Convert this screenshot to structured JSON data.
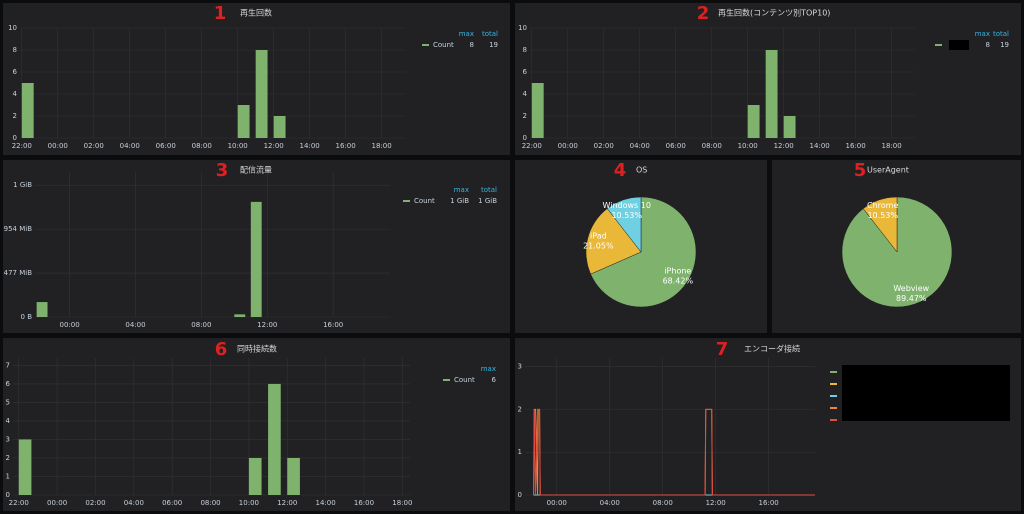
{
  "chart_data": [
    {
      "annotation": "1",
      "type": "bar",
      "title": "再生回数",
      "grid": true,
      "xlim": [
        21.9,
        43.3
      ],
      "xticks": [
        {
          "value": 22,
          "label": "22:00"
        },
        {
          "value": 24,
          "label": "00:00"
        },
        {
          "value": 26,
          "label": "02:00"
        },
        {
          "value": 28,
          "label": "04:00"
        },
        {
          "value": 30,
          "label": "06:00"
        },
        {
          "value": 32,
          "label": "08:00"
        },
        {
          "value": 34,
          "label": "10:00"
        },
        {
          "value": 36,
          "label": "12:00"
        },
        {
          "value": 38,
          "label": "14:00"
        },
        {
          "value": 40,
          "label": "16:00"
        },
        {
          "value": 42,
          "label": "18:00"
        }
      ],
      "ylim": [
        0,
        10
      ],
      "yticks": [
        0,
        2,
        4,
        6,
        8,
        10
      ],
      "legend_columns": [
        "max",
        "total"
      ],
      "series": [
        {
          "name": "Count",
          "color": "#7eb26d",
          "x": [
            22,
            34,
            35,
            36
          ],
          "values": [
            5,
            3,
            8,
            2
          ],
          "max": 8,
          "total": 19
        }
      ]
    },
    {
      "annotation": "2",
      "type": "bar",
      "title": "再生回数(コンテンツ別TOP10)",
      "grid": true,
      "xlim": [
        21.9,
        43.3
      ],
      "xticks": [
        {
          "value": 22,
          "label": "22:00"
        },
        {
          "value": 24,
          "label": "00:00"
        },
        {
          "value": 26,
          "label": "02:00"
        },
        {
          "value": 28,
          "label": "04:00"
        },
        {
          "value": 30,
          "label": "06:00"
        },
        {
          "value": 32,
          "label": "08:00"
        },
        {
          "value": 34,
          "label": "10:00"
        },
        {
          "value": 36,
          "label": "12:00"
        },
        {
          "value": 38,
          "label": "14:00"
        },
        {
          "value": 40,
          "label": "16:00"
        },
        {
          "value": 42,
          "label": "18:00"
        }
      ],
      "ylim": [
        0,
        10
      ],
      "yticks": [
        0,
        2,
        4,
        6,
        8,
        10
      ],
      "legend_columns": [
        "max",
        "total"
      ],
      "series": [
        {
          "color": "#7eb26d",
          "x": [
            22,
            34,
            35,
            36
          ],
          "values": [
            5,
            3,
            8,
            2
          ],
          "max": 8,
          "total": 19
        }
      ]
    },
    {
      "annotation": "3",
      "type": "bar",
      "title": "配信流量",
      "grid": true,
      "xlim": [
        21.9,
        43.45
      ],
      "xticks": [
        {
          "value": 24,
          "label": "00:00"
        },
        {
          "value": 28,
          "label": "04:00"
        },
        {
          "value": 32,
          "label": "08:00"
        },
        {
          "value": 36,
          "label": "12:00"
        },
        {
          "value": 40,
          "label": "16:00"
        }
      ],
      "ylim": [
        0,
        1650000000
      ],
      "yticks": [
        {
          "value": 0,
          "label": "0 B"
        },
        {
          "value": 500000000,
          "label": "477 MiB"
        },
        {
          "value": 1000000000,
          "label": "954 MiB"
        },
        {
          "value": 1500000000,
          "label": "1 GiB"
        }
      ],
      "legend_columns": [
        "max",
        "total"
      ],
      "series": [
        {
          "name": "Count",
          "color": "#7eb26d",
          "x": [
            22,
            34,
            35
          ],
          "values": [
            170000000,
            30000000,
            1310000000
          ],
          "max": {
            "value": 1310000000,
            "label": "1 GiB"
          },
          "total": {
            "value": 1510000000,
            "label": "1 GiB"
          }
        }
      ]
    },
    {
      "annotation": "4",
      "type": "pie",
      "title": "OS",
      "categories": [
        "iPhone",
        "iPad",
        "Windows 10"
      ],
      "values": [
        68.42,
        21.05,
        10.53
      ],
      "value_labels": [
        "68.42%",
        "21.05%",
        "10.53%"
      ],
      "colors": [
        "#7eb26d",
        "#eab839",
        "#6ed0e0"
      ]
    },
    {
      "annotation": "5",
      "type": "pie",
      "title": "UserAgent",
      "categories": [
        "Webview",
        "Chrome"
      ],
      "values": [
        89.47,
        10.53
      ],
      "value_labels": [
        "89.47%",
        "10.53%"
      ],
      "colors": [
        "#7eb26d",
        "#eab839"
      ]
    },
    {
      "annotation": "6",
      "type": "bar",
      "title": "同時接続数",
      "grid": true,
      "xlim": [
        21.7,
        42.4
      ],
      "xticks": [
        {
          "value": 22,
          "label": "22:00"
        },
        {
          "value": 24,
          "label": "00:00"
        },
        {
          "value": 26,
          "label": "02:00"
        },
        {
          "value": 28,
          "label": "04:00"
        },
        {
          "value": 30,
          "label": "06:00"
        },
        {
          "value": 32,
          "label": "08:00"
        },
        {
          "value": 34,
          "label": "10:00"
        },
        {
          "value": 36,
          "label": "12:00"
        },
        {
          "value": 38,
          "label": "14:00"
        },
        {
          "value": 40,
          "label": "16:00"
        },
        {
          "value": 42,
          "label": "18:00"
        }
      ],
      "ylim": [
        0,
        7.4
      ],
      "yticks": [
        0,
        1,
        2,
        3,
        4,
        5,
        6,
        7
      ],
      "legend_columns": [
        "max"
      ],
      "series": [
        {
          "name": "Count",
          "color": "#7eb26d",
          "x": [
            22,
            34,
            35,
            36
          ],
          "values": [
            3,
            2,
            6,
            2
          ],
          "max": 6
        }
      ]
    },
    {
      "annotation": "7",
      "type": "line",
      "title": "エンコーダ接続",
      "grid": true,
      "xlim": [
        21.6,
        43.5
      ],
      "xticks": [
        {
          "value": 24,
          "label": "00:00"
        },
        {
          "value": 28,
          "label": "04:00"
        },
        {
          "value": 32,
          "label": "08:00"
        },
        {
          "value": 36,
          "label": "12:00"
        },
        {
          "value": 40,
          "label": "16:00"
        }
      ],
      "ylim": [
        0,
        3.2
      ],
      "yticks": [
        0,
        1,
        2,
        3
      ],
      "x": [
        22.25,
        22.3,
        22.4,
        22.55,
        22.6,
        22.7,
        22.75,
        35.2,
        35.25,
        35.7,
        35.75,
        43.5
      ],
      "series": [
        {
          "color": "#7eb26d",
          "values": [
            0,
            0,
            0,
            0,
            0,
            0,
            0,
            0,
            0,
            0,
            0,
            0
          ]
        },
        {
          "color": "#eab839",
          "values": [
            0,
            0,
            0,
            0,
            0,
            0,
            0,
            0,
            0,
            0,
            0,
            0
          ]
        },
        {
          "color": "#6ed0e0",
          "values": [
            0,
            0,
            0,
            0,
            0,
            0,
            0,
            0,
            0,
            0,
            0,
            0
          ]
        },
        {
          "color": "#ef843c",
          "values": [
            0,
            2,
            2,
            0,
            2,
            2,
            0,
            0,
            2,
            2,
            0,
            0
          ]
        },
        {
          "color": "#e24d42",
          "values": [
            0,
            2,
            0,
            2,
            2,
            2,
            0,
            0,
            2,
            2,
            0,
            0
          ]
        }
      ]
    }
  ]
}
